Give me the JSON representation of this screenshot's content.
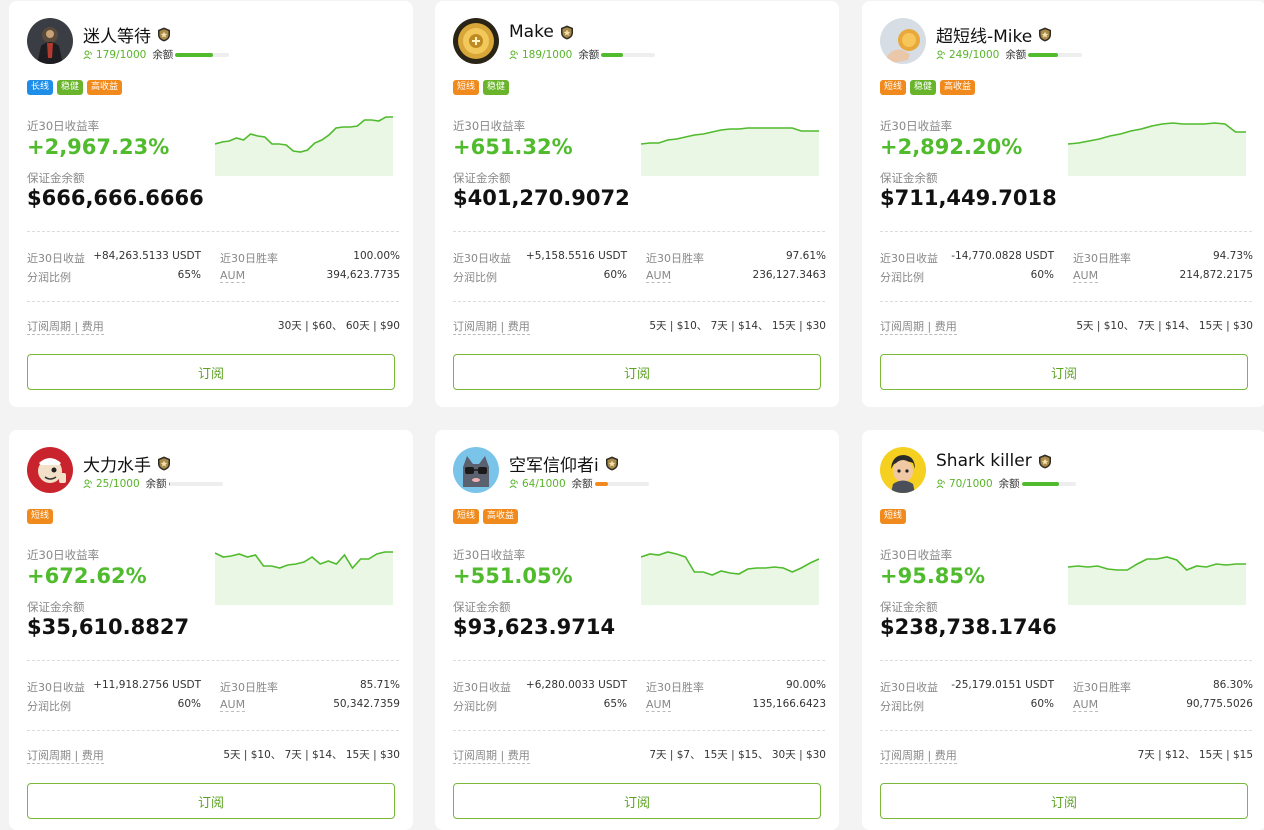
{
  "labels": {
    "balance": "余额",
    "return_30d": "近30日收益率",
    "margin_balance": "保证金余额",
    "profit_30d": "近30日收益",
    "winrate_30d": "近30日胜率",
    "share_ratio": "分润比例",
    "aum": "AUM",
    "period_fee": "订阅周期 | 费用",
    "subscribe": "订阅"
  },
  "colors": {
    "green": "#4fbb2d",
    "tag_blue": "#1e8ee8",
    "tag_green": "#6ab42c",
    "tag_orange": "#f08a1c",
    "balance_orange": "#f08a1c"
  },
  "traders": [
    {
      "name": "迷人等待",
      "avatar_icon": "warrior-avatar",
      "followers": "179/1000",
      "balance_level": 0.7,
      "balance_color": "#4fbb2d",
      "tags": [
        {
          "text": "长线",
          "color": "#1e8ee8"
        },
        {
          "text": "稳健",
          "color": "#6ab42c"
        },
        {
          "text": "高收益",
          "color": "#f08a1c"
        }
      ],
      "return_30d": "+2,967.23%",
      "margin_balance": "$666,666.6666",
      "profit_30d": "+84,263.5133 USDT",
      "winrate_30d": "100.00%",
      "share_ratio": "65%",
      "aum": "394,623.7735",
      "fees": "30天 | $60、 60天 | $90",
      "spark": [
        30,
        28,
        27,
        24,
        26,
        20,
        22,
        23,
        30,
        30,
        31,
        37,
        38,
        36,
        29,
        26,
        21,
        14,
        13,
        13,
        12,
        6,
        6,
        7,
        3,
        3
      ]
    },
    {
      "name": "Make",
      "avatar_icon": "gold-coin-avatar",
      "followers": "189/1000",
      "balance_level": 0.4,
      "balance_color": "#4fbb2d",
      "tags": [
        {
          "text": "短线",
          "color": "#f08a1c"
        },
        {
          "text": "稳健",
          "color": "#6ab42c"
        }
      ],
      "return_30d": "+651.32%",
      "margin_balance": "$401,270.9072",
      "profit_30d": "+5,158.5516 USDT",
      "winrate_30d": "97.61%",
      "share_ratio": "60%",
      "aum": "236,127.3463",
      "fees": "5天 | $10、 7天 | $14、 15天 | $30",
      "spark": [
        30,
        29,
        29,
        26,
        25,
        23,
        21,
        20,
        18,
        16,
        15,
        15,
        14,
        14,
        14,
        14,
        14,
        14,
        17,
        17,
        17
      ]
    },
    {
      "name": "超短线-Mike",
      "avatar_icon": "coin-hand-avatar",
      "followers": "249/1000",
      "balance_level": 0.55,
      "balance_color": "#4fbb2d",
      "tags": [
        {
          "text": "短线",
          "color": "#f08a1c"
        },
        {
          "text": "稳健",
          "color": "#6ab42c"
        },
        {
          "text": "高收益",
          "color": "#f08a1c"
        }
      ],
      "return_30d": "+2,892.20%",
      "margin_balance": "$711,449.7018",
      "profit_30d": "-14,770.0828 USDT",
      "winrate_30d": "94.73%",
      "share_ratio": "60%",
      "aum": "214,872.2175",
      "fees": "5天 | $10、 7天 | $14、 15天 | $30",
      "spark": [
        30,
        29,
        27,
        25,
        22,
        20,
        17,
        15,
        12,
        10,
        9,
        10,
        10,
        10,
        9,
        10,
        18,
        18
      ]
    },
    {
      "name": "大力水手",
      "avatar_icon": "sailor-avatar",
      "followers": "25/1000",
      "balance_level": 0.02,
      "balance_color": "#4fbb2d",
      "tags": [
        {
          "text": "短线",
          "color": "#f08a1c"
        }
      ],
      "return_30d": "+672.62%",
      "margin_balance": "$35,610.8827",
      "profit_30d": "+11,918.2756 USDT",
      "winrate_30d": "85.71%",
      "share_ratio": "60%",
      "aum": "50,342.7359",
      "fees": "5天 | $10、 7天 | $14、 15天 | $30",
      "spark": [
        10,
        14,
        13,
        11,
        14,
        12,
        23,
        23,
        25,
        22,
        21,
        19,
        14,
        21,
        18,
        21,
        12,
        25,
        16,
        16,
        11,
        9,
        9
      ]
    },
    {
      "name": "空军信仰者i",
      "avatar_icon": "cat-avatar",
      "followers": "64/1000",
      "balance_level": 0.25,
      "balance_color": "#f08a1c",
      "tags": [
        {
          "text": "短线",
          "color": "#f08a1c"
        },
        {
          "text": "高收益",
          "color": "#f08a1c"
        }
      ],
      "return_30d": "+551.05%",
      "margin_balance": "$93,623.9714",
      "profit_30d": "+6,280.0033 USDT",
      "winrate_30d": "90.00%",
      "share_ratio": "65%",
      "aum": "135,166.6423",
      "fees": "7天 | $7、 15天 | $15、 30天 | $30",
      "spark": [
        14,
        11,
        12,
        9,
        11,
        14,
        29,
        29,
        32,
        28,
        30,
        31,
        26,
        25,
        25,
        24,
        25,
        29,
        25,
        20,
        16
      ]
    },
    {
      "name": "Shark killer",
      "avatar_icon": "shark-killer-avatar",
      "followers": "70/1000",
      "balance_level": 0.7,
      "balance_color": "#4fbb2d",
      "tags": [
        {
          "text": "短线",
          "color": "#f08a1c"
        }
      ],
      "return_30d": "+95.85%",
      "margin_balance": "$238,738.1746",
      "profit_30d": "-25,179.0151 USDT",
      "winrate_30d": "86.30%",
      "share_ratio": "60%",
      "aum": "90,775.5026",
      "fees": "7天 | $12、 15天 | $15",
      "spark": [
        24,
        23,
        24,
        23,
        26,
        27,
        27,
        21,
        16,
        16,
        14,
        17,
        27,
        23,
        24,
        21,
        22,
        21,
        21
      ]
    }
  ]
}
